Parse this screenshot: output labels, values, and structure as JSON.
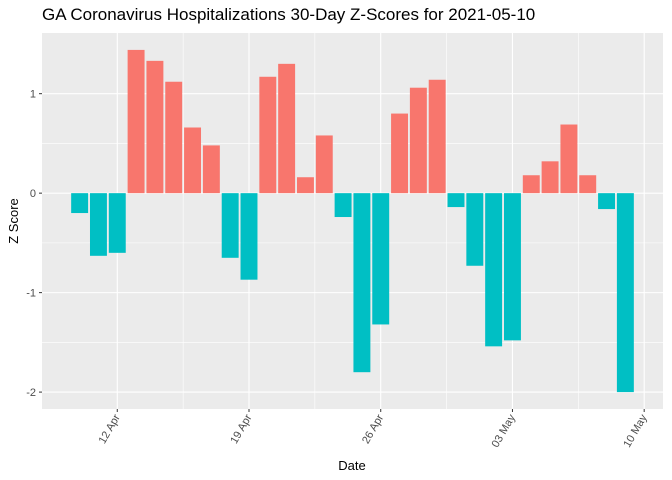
{
  "chart_data": {
    "type": "bar",
    "title": "GA Coronavirus Hospitalizations 30-Day Z-Scores for 2021-05-10",
    "x_label": "Date",
    "y_label": "Z Score",
    "x": [
      "10 Apr",
      "11 Apr",
      "12 Apr",
      "13 Apr",
      "14 Apr",
      "15 Apr",
      "16 Apr",
      "17 Apr",
      "18 Apr",
      "19 Apr",
      "20 Apr",
      "21 Apr",
      "22 Apr",
      "23 Apr",
      "24 Apr",
      "25 Apr",
      "26 Apr",
      "27 Apr",
      "28 Apr",
      "29 Apr",
      "30 Apr",
      "01 May",
      "02 May",
      "03 May",
      "04 May",
      "05 May",
      "06 May",
      "07 May",
      "08 May",
      "09 May"
    ],
    "values": [
      -0.2,
      -0.63,
      -0.6,
      1.44,
      1.33,
      1.12,
      0.66,
      0.48,
      -0.65,
      -0.87,
      1.17,
      1.3,
      0.16,
      0.58,
      -0.24,
      -1.8,
      -1.32,
      0.8,
      1.06,
      1.14,
      -0.14,
      -0.73,
      -1.54,
      -1.48,
      0.18,
      0.32,
      0.69,
      0.18,
      -0.16,
      -2.0
    ],
    "colors": {
      "positive": "#F8766D",
      "negative": "#00BFC4"
    },
    "xlim": [
      "08 Apr",
      "11 May"
    ],
    "xticks": [
      "12 Apr",
      "19 Apr",
      "26 Apr",
      "03 May",
      "10 May"
    ],
    "ylim": [
      -2.17,
      1.61
    ],
    "yticks": [
      -2,
      -1,
      0,
      1
    ],
    "grid": true
  }
}
